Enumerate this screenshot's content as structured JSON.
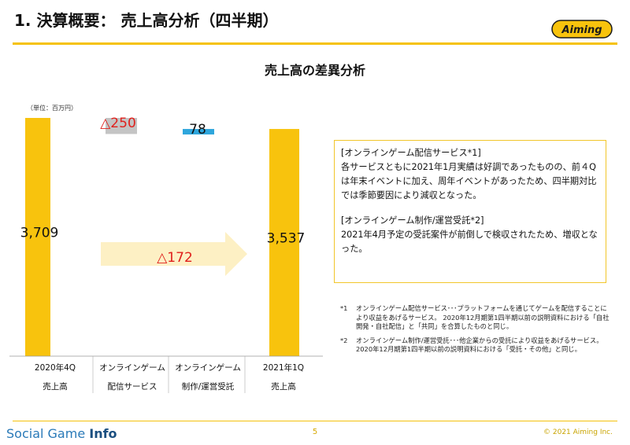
{
  "header": {
    "title": "1. 決算概要： 売上高分析（四半期）",
    "logo_text": "Aiming"
  },
  "chart_data": {
    "type": "bar",
    "subtype": "waterfall",
    "title": "売上高の差異分析",
    "unit_label": "（単位：百万円）",
    "categories": [
      {
        "line1": "2020年4Q",
        "line2": "売上高"
      },
      {
        "line1": "オンラインゲーム",
        "line2": "配信サービス"
      },
      {
        "line1": "オンラインゲーム",
        "line2": "制作/運営受託"
      },
      {
        "line1": "2021年1Q",
        "line2": "売上高"
      }
    ],
    "values": [
      3709,
      -250,
      78,
      3537
    ],
    "value_labels": [
      "3,709",
      "△250",
      "78",
      "3,537"
    ],
    "total_change_label": "△172",
    "ylim": [
      0,
      3709
    ],
    "colors": {
      "total": "#f8c30d",
      "decrease": "#c4c4c4",
      "increase": "#2ea6dc",
      "decrease_text": "#e0201c",
      "arrow": "#fdf0c4"
    }
  },
  "explanation": {
    "sections": [
      {
        "heading": "[オンラインゲーム配信サービス*1]",
        "body": "各サービスともに2021年1月実績は好調であったものの、前４Qは年末イベントに加え、周年イベントがあったため、四半期対比では季節要因により減収となった。"
      },
      {
        "heading": "[オンラインゲーム制作/運営受託*2]",
        "body": "2021年4月予定の受託案件が前倒しで検収されたため、増収となった。"
      }
    ]
  },
  "notes": [
    {
      "mark": "*1",
      "text": "オンラインゲーム配信サービス･･･プラットフォームを通じてゲームを配信することにより収益をあげるサービス。 2020年12月期第1四半期以前の説明資料における「自社開発・自社配信」と「共同」を合算したものと同じ。"
    },
    {
      "mark": "*2",
      "text": "オンラインゲーム制作/運営受託･･･他企業からの受託により収益をあげるサービス。 2020年12月期第1四半期以前の説明資料における「受託・その他」と同じ。"
    }
  ],
  "footer": {
    "brand_light": "Social Game ",
    "brand_bold": "Info",
    "page_number": "5",
    "copyright": "© 2021 Aiming Inc."
  }
}
